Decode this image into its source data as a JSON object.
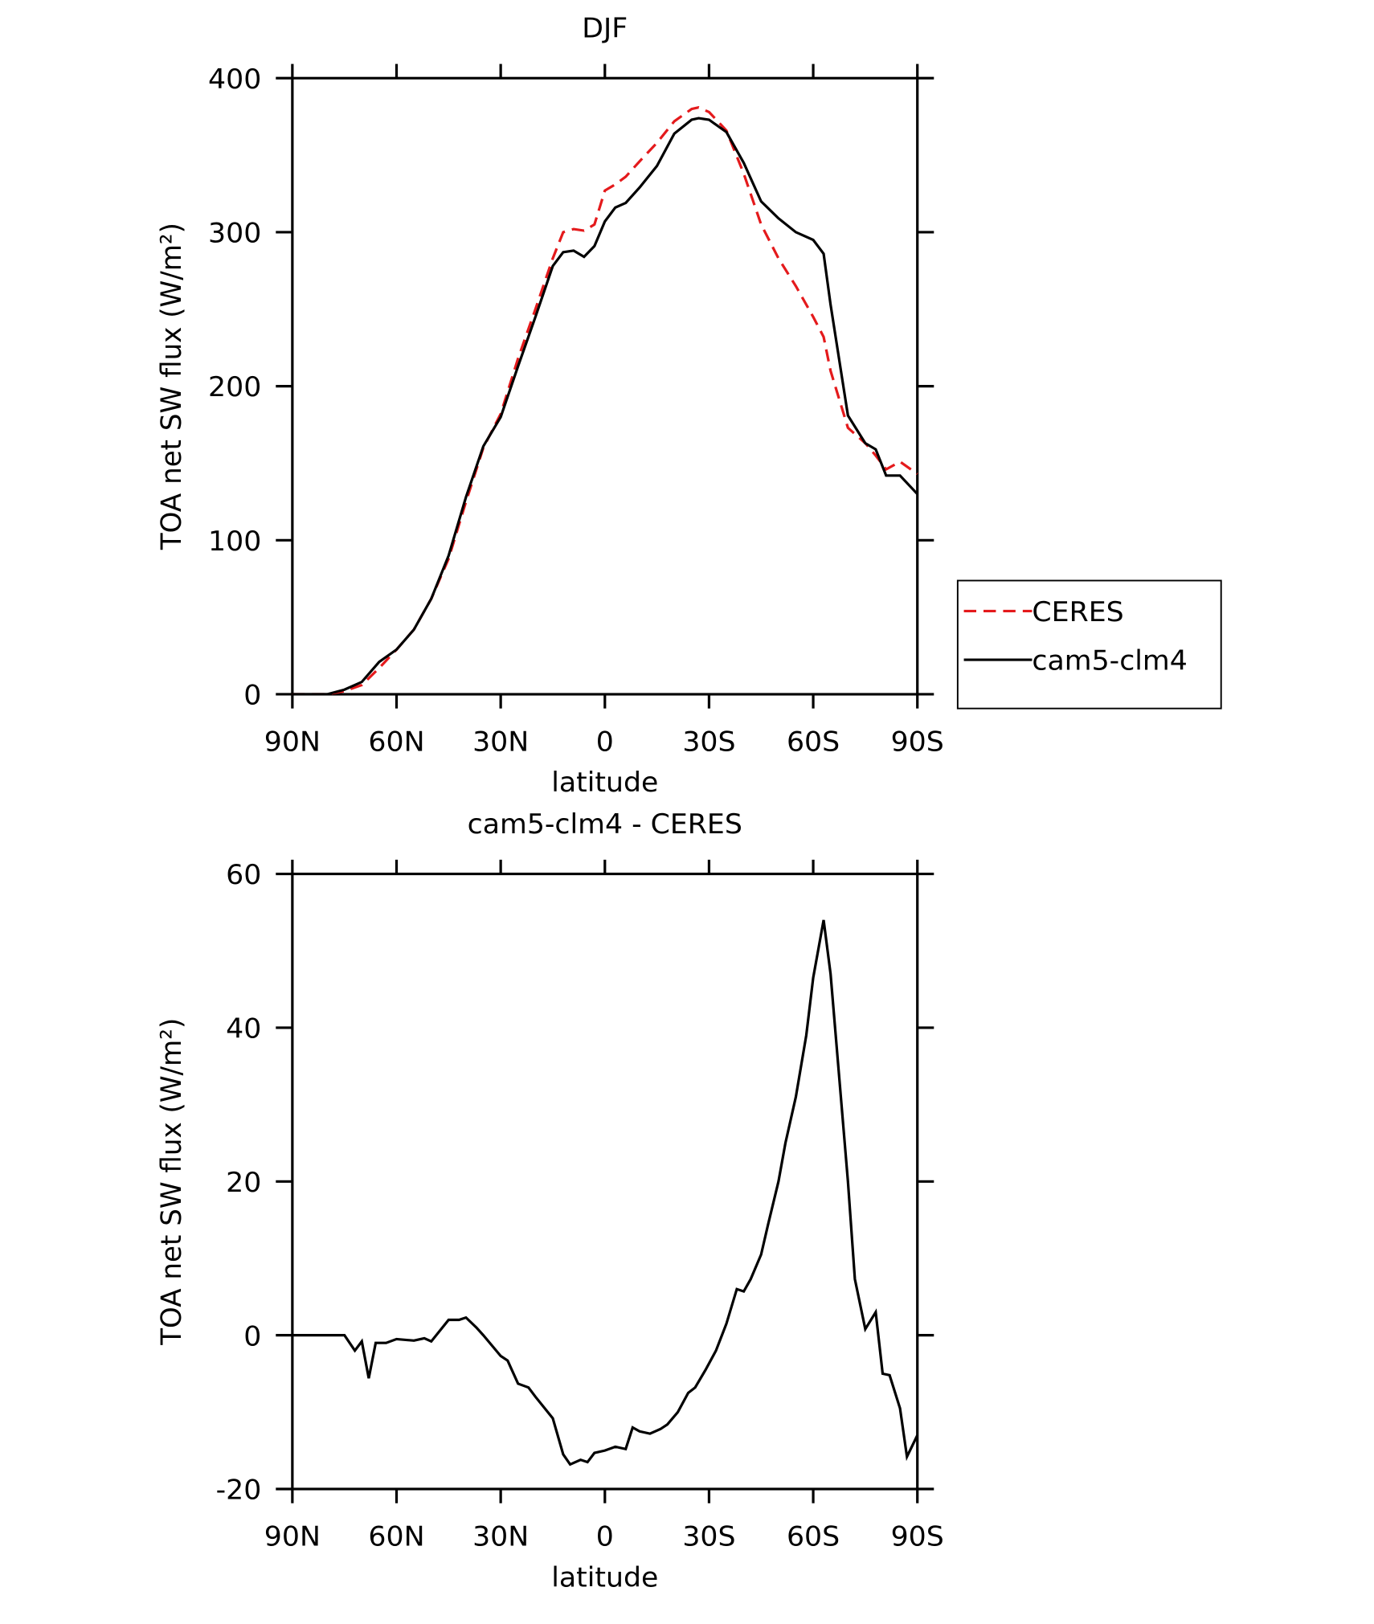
{
  "chart_data": [
    {
      "type": "line",
      "title": "DJF",
      "xlabel": "latitude",
      "ylabel": "TOA net SW flux (W/m²)",
      "x": [
        90,
        80,
        75,
        70,
        65,
        60,
        55,
        50,
        45,
        40,
        35,
        30,
        25,
        20,
        15,
        12,
        9,
        6,
        3,
        0,
        -3,
        -6,
        -10,
        -15,
        -20,
        -25,
        -27,
        -30,
        -35,
        -40,
        -45,
        -50,
        -55,
        -60,
        -63,
        -65,
        -70,
        -75,
        -78,
        -81,
        -85,
        -90
      ],
      "series": [
        {
          "name": "CERES",
          "color": "#e41a1c",
          "dash": true,
          "values": [
            0,
            0,
            2,
            6,
            17,
            29,
            42,
            62,
            88,
            125,
            160,
            182,
            218,
            250,
            283,
            300,
            302,
            301,
            305,
            327,
            331,
            336,
            346,
            358,
            372,
            380,
            381,
            378,
            366,
            338,
            305,
            283,
            265,
            245,
            232,
            210,
            173,
            163,
            155,
            146,
            151,
            143
          ]
        },
        {
          "name": "cam5-clm4",
          "color": "#000000",
          "dash": false,
          "values": [
            0,
            0,
            3,
            8,
            21,
            29,
            42,
            62,
            90,
            128,
            161,
            180,
            213,
            245,
            278,
            287,
            288,
            284,
            291,
            307,
            316,
            319,
            329,
            343,
            364,
            373,
            374,
            373,
            365,
            345,
            320,
            309,
            300,
            295,
            286,
            253,
            181,
            163,
            159,
            142,
            142,
            130
          ]
        }
      ],
      "xlim": [
        90,
        -90
      ],
      "xticks": [
        {
          "value": 90,
          "label": "90N"
        },
        {
          "value": 60,
          "label": "60N"
        },
        {
          "value": 30,
          "label": "30N"
        },
        0,
        {
          "value": -30,
          "label": "30S"
        },
        {
          "value": -60,
          "label": "60S"
        },
        {
          "value": -90,
          "label": "90S"
        }
      ],
      "ylim": [
        0,
        400
      ],
      "yticks": [
        0,
        100,
        200,
        300,
        400
      ],
      "legend": "right"
    },
    {
      "type": "line",
      "title": "cam5-clm4 - CERES",
      "xlabel": "latitude",
      "ylabel": "TOA net SW flux (W/m²)",
      "x": [
        90,
        80,
        75,
        72,
        70,
        68,
        66,
        63,
        60,
        55,
        52,
        50,
        45,
        42,
        40,
        37,
        35,
        30,
        28,
        25,
        22,
        20,
        15,
        12,
        10,
        7,
        5,
        3,
        0,
        -3,
        -6,
        -8,
        -10,
        -13,
        -16,
        -18,
        -21,
        -24,
        -26,
        -29,
        -32,
        -35,
        -38,
        -40,
        -42,
        -45,
        -47,
        -50,
        -52,
        -55,
        -58,
        -60,
        -63,
        -65,
        -70,
        -72,
        -75,
        -78,
        -80,
        -82,
        -85,
        -87,
        -90
      ],
      "series": [
        {
          "color": "#000000",
          "dash": false,
          "values": [
            0,
            0,
            0,
            -2,
            -0.8,
            -5.6,
            -1,
            -1,
            -0.5,
            -0.7,
            -0.4,
            -0.8,
            2,
            2,
            2.3,
            1,
            0,
            -2.7,
            -3.3,
            -6.3,
            -6.8,
            -8,
            -10.8,
            -15.5,
            -16.8,
            -16.2,
            -16.5,
            -15.3,
            -15,
            -14.5,
            -14.8,
            -12,
            -12.5,
            -12.8,
            -12.2,
            -11.6,
            -10,
            -7.5,
            -6.8,
            -4.5,
            -2,
            1.5,
            6,
            5.7,
            7.3,
            10.5,
            14.4,
            20,
            25,
            31,
            39,
            46.5,
            54,
            47,
            20,
            7.3,
            0.8,
            3,
            -5,
            -5.2,
            -9.5,
            -15.8,
            -13
          ]
        }
      ],
      "xlim": [
        90,
        -90
      ],
      "xticks": [
        {
          "value": 90,
          "label": "90N"
        },
        {
          "value": 60,
          "label": "60N"
        },
        {
          "value": 30,
          "label": "30N"
        },
        0,
        {
          "value": -30,
          "label": "30S"
        },
        {
          "value": -60,
          "label": "60S"
        },
        {
          "value": -90,
          "label": "90S"
        }
      ],
      "ylim": [
        -20,
        60
      ],
      "yticks": [
        -20,
        0,
        20,
        40,
        60
      ]
    }
  ]
}
